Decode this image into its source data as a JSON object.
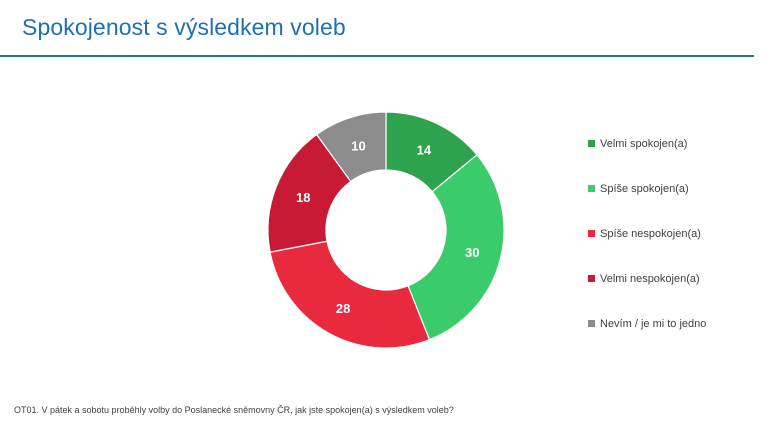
{
  "page": {
    "title": "Spokojenost s výsledkem voleb",
    "footnote": "OT01. V pátek a sobotu proběhly volby do Poslanecké sněmovny ČR, jak jste spokojen(a) s výsledkem voleb?"
  },
  "chart_data": {
    "type": "pie",
    "variant": "donut",
    "title": "Spokojenost s výsledkem voleb",
    "categories": [
      "Velmi spokojen(a)",
      "Spíše spokojen(a)",
      "Spíše nespokojen(a)",
      "Velmi nespokojen(a)",
      "Nevím / je mi to jedno"
    ],
    "values": [
      14,
      30,
      28,
      18,
      10
    ],
    "colors": [
      "#2ea34e",
      "#3ccb6a",
      "#e8293e",
      "#c81a34",
      "#8c8c8c"
    ],
    "legend": "right",
    "start": "top, clockwise"
  }
}
